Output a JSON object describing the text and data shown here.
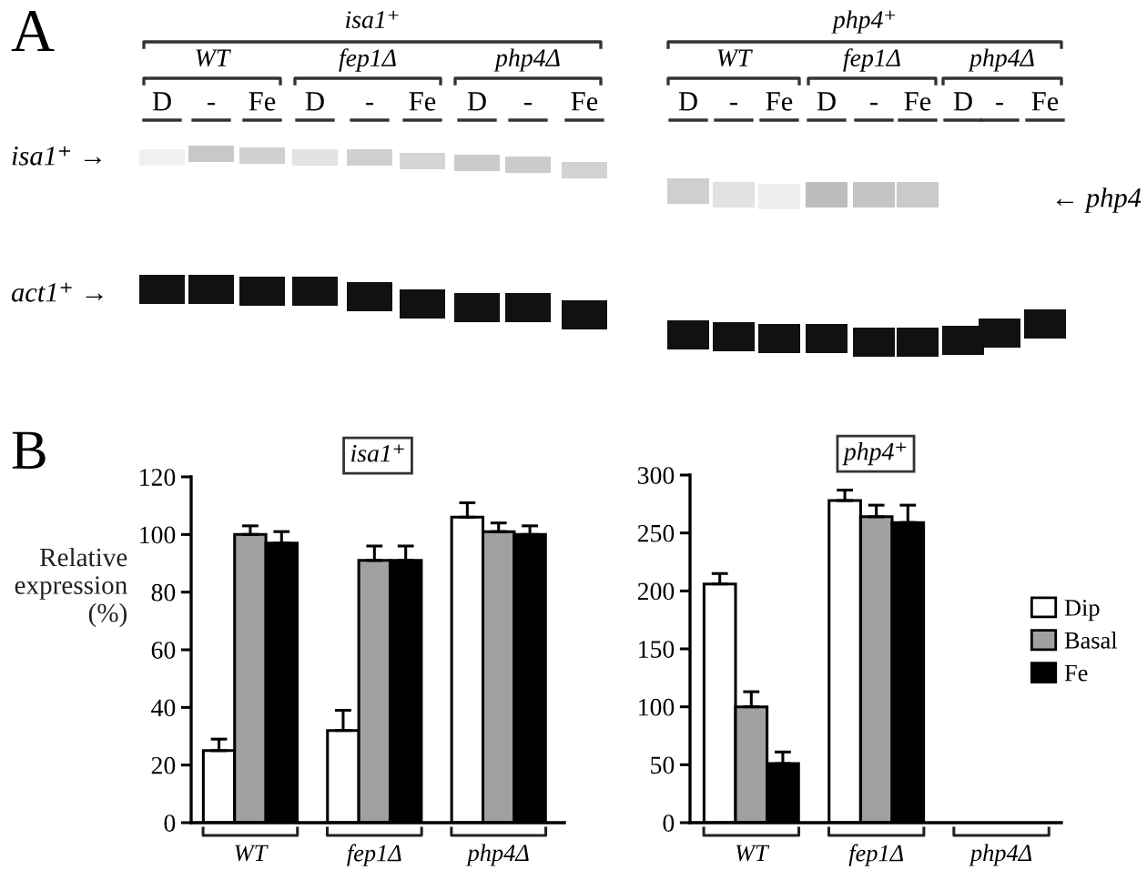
{
  "chart_data": [
    {
      "type": "other",
      "annotations": [
        "A",
        "isa1⁺",
        "php4⁺",
        "WT",
        "fep1Δ",
        "php4Δ",
        "WT",
        "fep1Δ",
        "php4Δ",
        "D",
        "-",
        "Fe",
        "D",
        "-",
        "Fe",
        "D",
        "-",
        "Fe",
        "D",
        "-",
        "Fe",
        "D",
        "-",
        "Fe",
        "D",
        "-",
        "Fe",
        "isa1⁺ →",
        "act1⁺ →",
        "← php4"
      ]
    },
    {
      "type": "bar",
      "title": "isa1⁺",
      "ylabel": "Relative\nexpression\n(%)",
      "categories": [
        "WT",
        "fep1Δ",
        "php4Δ"
      ],
      "ylim": [
        0,
        120
      ],
      "yticks": [
        0,
        20,
        40,
        60,
        80,
        100,
        120
      ],
      "annotations": [
        "B"
      ],
      "series": [
        {
          "color": "#ffffff",
          "values": [
            25,
            32,
            106
          ],
          "errors": [
            [
              25,
              29
            ],
            [
              32,
              39
            ],
            [
              106,
              111
            ]
          ]
        },
        {
          "color": "#a0a0a0",
          "values": [
            100,
            91,
            101
          ],
          "errors": [
            [
              100,
              103
            ],
            [
              91,
              96
            ],
            [
              101,
              104
            ]
          ]
        },
        {
          "color": "#000000",
          "values": [
            97,
            91,
            100
          ],
          "errors": [
            [
              97,
              101
            ],
            [
              91,
              96
            ],
            [
              100,
              103
            ]
          ]
        }
      ]
    },
    {
      "type": "bar",
      "title": "php4⁺",
      "categories": [
        "WT",
        "fep1Δ",
        "php4Δ"
      ],
      "ylim": [
        0,
        300
      ],
      "yticks": [
        0,
        50,
        100,
        150,
        200,
        250,
        300
      ],
      "legend": "right",
      "series": [
        {
          "name": "Dip",
          "color": "#ffffff",
          "values": [
            206,
            278,
            null
          ],
          "errors": [
            [
              206,
              215
            ],
            [
              278,
              287
            ],
            null
          ]
        },
        {
          "name": "Basal",
          "color": "#a0a0a0",
          "values": [
            100,
            264,
            null
          ],
          "errors": [
            [
              100,
              113
            ],
            [
              264,
              274
            ],
            null
          ]
        },
        {
          "name": "Fe",
          "color": "#000000",
          "values": [
            51,
            259,
            null
          ],
          "errors": [
            [
              51,
              61
            ],
            [
              259,
              274
            ],
            null
          ]
        }
      ]
    }
  ]
}
